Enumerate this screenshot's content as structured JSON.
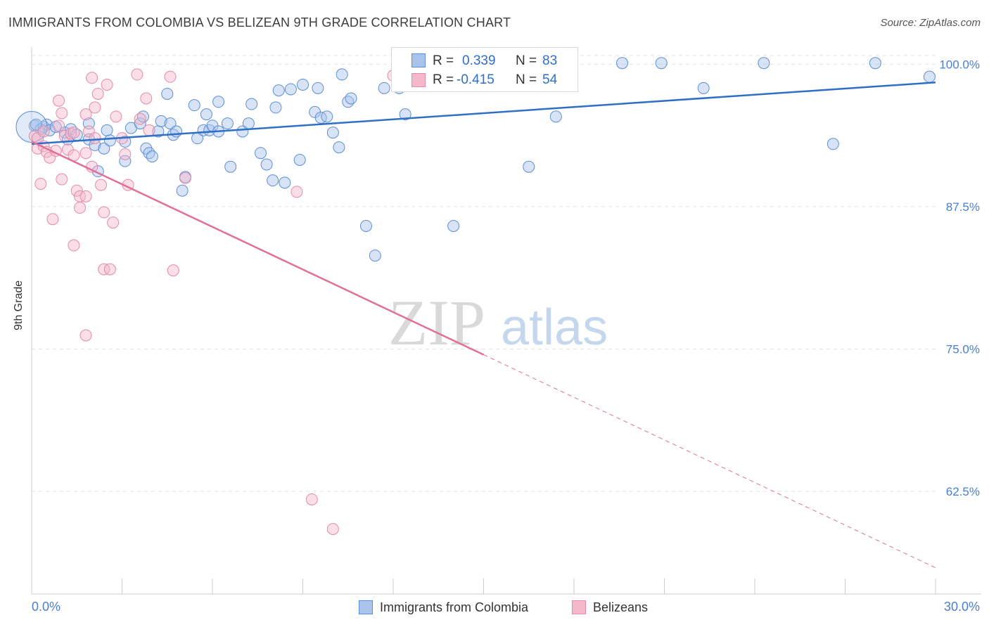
{
  "title": "IMMIGRANTS FROM COLOMBIA VS BELIZEAN 9TH GRADE CORRELATION CHART",
  "source": "Source: ZipAtlas.com",
  "watermark": {
    "zip": "ZIP",
    "atlas": "atlas"
  },
  "colors": {
    "blue_fill": "#a9c4ea",
    "blue_stroke": "#5b8fd6",
    "blue_line": "#2f6fc8",
    "pink_fill": "#f4b8cb",
    "pink_stroke": "#e58aa8",
    "pink_line": "#e0709a",
    "tick_label": "#4a7fd0"
  },
  "legend": {
    "rows": [
      {
        "r_label": "R =",
        "r_value": "0.339",
        "n_label": "N =",
        "n_value": "83"
      },
      {
        "r_label": "R =",
        "r_value": "-0.415",
        "n_label": "N =",
        "n_value": "54"
      }
    ]
  },
  "bottom_legend": {
    "series1": "Immigrants from Colombia",
    "series2": "Belizeans"
  },
  "chart_data": {
    "type": "scatter",
    "ylabel": "9th Grade",
    "xlim": [
      0,
      30
    ],
    "ylim": [
      53.5,
      101.5
    ],
    "x_tick_labels": [
      "0.0%",
      "30.0%"
    ],
    "y_ticks": [
      62.5,
      75.0,
      87.5,
      100.0
    ],
    "y_tick_labels": [
      "62.5%",
      "75.0%",
      "87.5%",
      "100.0%"
    ],
    "grid": true,
    "series": [
      {
        "name": "Immigrants from Colombia",
        "trend": {
          "x": [
            0,
            30
          ],
          "y": [
            93.0,
            98.4
          ]
        },
        "points": [
          [
            0.1,
            94.6
          ],
          [
            0.3,
            94.3
          ],
          [
            0.4,
            94.5
          ],
          [
            0.5,
            94.7
          ],
          [
            0.6,
            94.2
          ],
          [
            0.8,
            94.5
          ],
          [
            1.1,
            94.0
          ],
          [
            1.2,
            93.4
          ],
          [
            1.3,
            94.3
          ],
          [
            1.5,
            93.8
          ],
          [
            1.9,
            93.4
          ],
          [
            1.9,
            94.8
          ],
          [
            2.1,
            92.9
          ],
          [
            2.2,
            90.6
          ],
          [
            2.4,
            92.6
          ],
          [
            2.5,
            94.2
          ],
          [
            2.6,
            93.3
          ],
          [
            3.1,
            93.2
          ],
          [
            3.1,
            91.5
          ],
          [
            3.3,
            94.4
          ],
          [
            3.6,
            94.8
          ],
          [
            3.8,
            92.6
          ],
          [
            3.7,
            95.4
          ],
          [
            3.9,
            92.2
          ],
          [
            4.0,
            91.9
          ],
          [
            4.2,
            94.1
          ],
          [
            4.3,
            95.0
          ],
          [
            4.5,
            97.4
          ],
          [
            4.6,
            94.8
          ],
          [
            4.7,
            93.8
          ],
          [
            4.8,
            94.1
          ],
          [
            5.0,
            88.9
          ],
          [
            5.1,
            90.1
          ],
          [
            5.4,
            96.4
          ],
          [
            5.5,
            93.5
          ],
          [
            5.7,
            94.2
          ],
          [
            5.8,
            95.6
          ],
          [
            5.9,
            94.2
          ],
          [
            6.0,
            94.6
          ],
          [
            6.2,
            96.7
          ],
          [
            6.2,
            94.1
          ],
          [
            6.5,
            94.8
          ],
          [
            6.6,
            91.0
          ],
          [
            7.0,
            94.1
          ],
          [
            7.2,
            94.8
          ],
          [
            7.3,
            96.5
          ],
          [
            7.6,
            92.2
          ],
          [
            7.8,
            91.2
          ],
          [
            8.0,
            89.8
          ],
          [
            8.1,
            96.2
          ],
          [
            8.2,
            97.7
          ],
          [
            8.4,
            89.6
          ],
          [
            8.6,
            97.8
          ],
          [
            8.9,
            91.6
          ],
          [
            9.0,
            98.2
          ],
          [
            9.4,
            95.8
          ],
          [
            9.5,
            97.9
          ],
          [
            9.6,
            95.3
          ],
          [
            9.8,
            95.4
          ],
          [
            10.0,
            94.0
          ],
          [
            10.2,
            92.7
          ],
          [
            10.3,
            99.1
          ],
          [
            10.5,
            96.7
          ],
          [
            10.6,
            97.0
          ],
          [
            11.1,
            85.8
          ],
          [
            11.4,
            83.2
          ],
          [
            11.7,
            97.9
          ],
          [
            12.2,
            97.9
          ],
          [
            12.4,
            95.6
          ],
          [
            14.0,
            85.8
          ],
          [
            16.5,
            91.0
          ],
          [
            17.4,
            95.4
          ],
          [
            19.6,
            100.1
          ],
          [
            20.9,
            100.1
          ],
          [
            22.3,
            97.9
          ],
          [
            24.3,
            100.1
          ],
          [
            26.6,
            93.0
          ],
          [
            28.0,
            100.1
          ],
          [
            29.8,
            98.9
          ],
          [
            0.15,
            94.7
          ]
        ]
      },
      {
        "name": "Belizeans",
        "trend": {
          "x": [
            0,
            15
          ],
          "y": [
            93.2,
            74.5
          ]
        },
        "trend_dashed": {
          "x": [
            15,
            30
          ],
          "y": [
            74.5,
            55.8
          ]
        },
        "points": [
          [
            0.1,
            93.7
          ],
          [
            0.2,
            93.5
          ],
          [
            0.2,
            92.6
          ],
          [
            0.3,
            89.5
          ],
          [
            0.4,
            94.1
          ],
          [
            0.4,
            92.8
          ],
          [
            0.5,
            92.3
          ],
          [
            0.6,
            91.8
          ],
          [
            0.7,
            86.4
          ],
          [
            0.8,
            92.4
          ],
          [
            0.9,
            94.6
          ],
          [
            0.9,
            96.8
          ],
          [
            1.0,
            95.7
          ],
          [
            1.0,
            89.9
          ],
          [
            1.1,
            93.7
          ],
          [
            1.2,
            92.5
          ],
          [
            1.3,
            93.9
          ],
          [
            1.4,
            84.1
          ],
          [
            1.4,
            94.0
          ],
          [
            1.4,
            92.0
          ],
          [
            1.5,
            88.9
          ],
          [
            1.6,
            87.4
          ],
          [
            1.6,
            88.4
          ],
          [
            1.8,
            76.2
          ],
          [
            1.8,
            95.6
          ],
          [
            1.8,
            92.2
          ],
          [
            1.8,
            88.4
          ],
          [
            1.9,
            94.1
          ],
          [
            2.0,
            91.0
          ],
          [
            2.0,
            98.8
          ],
          [
            2.1,
            96.2
          ],
          [
            2.1,
            93.5
          ],
          [
            2.2,
            97.4
          ],
          [
            2.3,
            89.4
          ],
          [
            2.4,
            87.0
          ],
          [
            2.4,
            82.0
          ],
          [
            2.5,
            98.2
          ],
          [
            2.6,
            82.0
          ],
          [
            2.7,
            86.1
          ],
          [
            2.8,
            95.4
          ],
          [
            3.0,
            93.5
          ],
          [
            3.1,
            92.1
          ],
          [
            3.2,
            89.4
          ],
          [
            3.5,
            99.1
          ],
          [
            3.6,
            95.2
          ],
          [
            3.8,
            97.0
          ],
          [
            3.9,
            94.2
          ],
          [
            4.6,
            98.9
          ],
          [
            4.7,
            81.9
          ],
          [
            5.1,
            90.0
          ],
          [
            8.8,
            88.8
          ],
          [
            9.3,
            61.8
          ],
          [
            10.0,
            59.2
          ],
          [
            12.0,
            99.0
          ]
        ]
      }
    ]
  }
}
